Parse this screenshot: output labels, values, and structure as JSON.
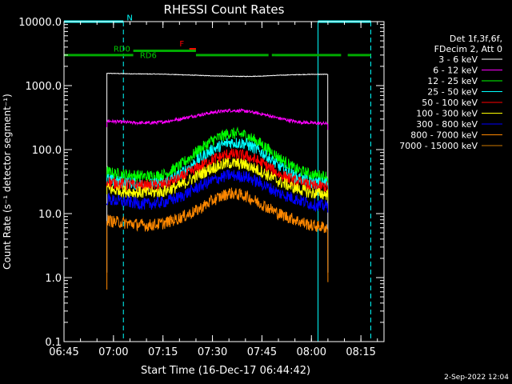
{
  "chart_data": {
    "type": "line",
    "title": "RHESSI Count Rates",
    "xlabel": "Start Time (16-Dec-17 06:44:42)",
    "ylabel": "Count Rate (s⁻¹ detector segment⁻¹)",
    "yscale": "log",
    "ylim": [
      0.1,
      10000
    ],
    "xlim": [
      "06:45",
      "08:22"
    ],
    "x_ticks": [
      "06:45",
      "07:00",
      "07:15",
      "07:30",
      "07:45",
      "08:00",
      "08:15"
    ],
    "y_ticks": [
      "0.1",
      "1.0",
      "10.0",
      "100.0",
      "1000.0",
      "10000.0"
    ],
    "grid": false,
    "legend_placement": "right",
    "legend_header": [
      "Det 1f,3f,6f,",
      "FDecim 2, Att 0"
    ],
    "footer_date": "2-Sep-2022 12:04",
    "flag_labels": {
      "night": "N",
      "flare": "F",
      "rd0": "RD0",
      "rd6": "RD6"
    },
    "vlines": [
      {
        "time": "06:45",
        "color": "#00ffff",
        "style": "solid"
      },
      {
        "time": "07:03",
        "color": "#00ffff",
        "style": "dashed"
      },
      {
        "time": "08:02",
        "color": "#00ffff",
        "style": "solid"
      },
      {
        "time": "08:18",
        "color": "#00ffff",
        "style": "dashed"
      }
    ],
    "flag_bars": [
      {
        "name": "N",
        "color": "#00ffff",
        "y": 10000,
        "segments": [
          [
            "06:45",
            "07:03"
          ],
          [
            "08:02",
            "08:18"
          ]
        ]
      },
      {
        "name": "F",
        "color": "#ff0000",
        "y": 3700,
        "segments": [
          [
            "07:23",
            "07:25"
          ]
        ]
      },
      {
        "name": "RD0",
        "color": "#00aa00",
        "y": 3500,
        "segments": [
          [
            "07:06",
            "07:25"
          ]
        ]
      },
      {
        "name": "RD6",
        "color": "#00aa00",
        "y": 3000,
        "segments": [
          [
            "06:45",
            "07:06"
          ],
          [
            "07:25",
            "07:47"
          ],
          [
            "07:48",
            "07:49"
          ],
          [
            "07:49",
            "08:09"
          ],
          [
            "08:11",
            "08:18"
          ]
        ]
      }
    ],
    "series_times": [
      "06:58",
      "07:00",
      "07:05",
      "07:10",
      "07:15",
      "07:20",
      "07:25",
      "07:30",
      "07:35",
      "07:40",
      "07:45",
      "07:50",
      "07:55",
      "08:00",
      "08:05"
    ],
    "series": [
      {
        "name": "3 - 6 keV",
        "color": "#ffffff",
        "values": [
          1550,
          1550,
          1530,
          1520,
          1510,
          1480,
          1450,
          1420,
          1400,
          1390,
          1410,
          1450,
          1480,
          1500,
          1500
        ]
      },
      {
        "name": "6 - 12 keV",
        "color": "#ff00ff",
        "values": [
          280,
          275,
          265,
          260,
          270,
          300,
          340,
          380,
          410,
          400,
          360,
          310,
          275,
          260,
          255
        ]
      },
      {
        "name": "12 - 25 keV",
        "color": "#00ff00",
        "values": [
          45,
          42,
          40,
          38,
          40,
          55,
          90,
          140,
          180,
          170,
          120,
          75,
          50,
          40,
          38
        ]
      },
      {
        "name": "25 - 50 keV",
        "color": "#00ffff",
        "values": [
          35,
          32,
          30,
          28,
          30,
          40,
          65,
          100,
          130,
          125,
          90,
          55,
          38,
          30,
          30
        ]
      },
      {
        "name": "50 - 100 keV",
        "color": "#ff0000",
        "values": [
          32,
          30,
          28,
          27,
          28,
          35,
          50,
          70,
          85,
          80,
          62,
          42,
          32,
          27,
          26
        ]
      },
      {
        "name": "100 - 300 keV",
        "color": "#ffff00",
        "values": [
          25,
          23,
          22,
          21,
          22,
          27,
          38,
          52,
          62,
          58,
          45,
          32,
          25,
          21,
          20
        ]
      },
      {
        "name": "300 - 800 keV",
        "color": "#0000ff",
        "values": [
          17,
          16,
          15,
          14,
          15,
          18,
          25,
          33,
          40,
          38,
          29,
          21,
          17,
          14,
          13
        ]
      },
      {
        "name": "800 - 7000 keV",
        "color": "#ff8800",
        "values": [
          8,
          7.5,
          7,
          6.5,
          7,
          8.5,
          11,
          16,
          21,
          19,
          14,
          10,
          8,
          6.5,
          6
        ]
      },
      {
        "name": "7000 - 15000 keV",
        "color": "#cc7700",
        "values": []
      }
    ]
  }
}
